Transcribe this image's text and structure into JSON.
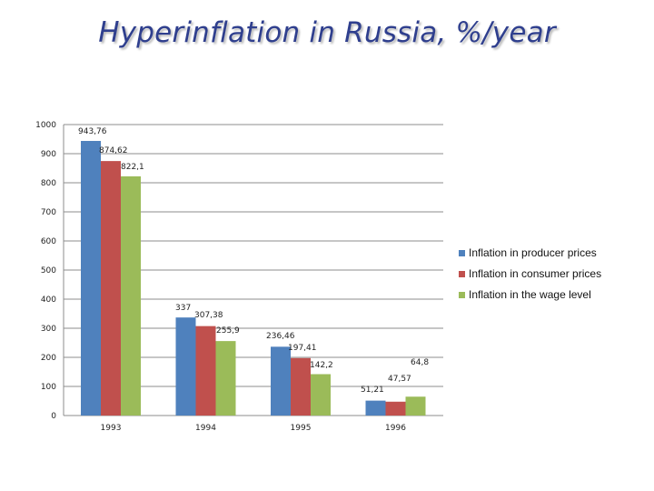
{
  "title": "Hyperinflation in Russia, %/year",
  "colors": {
    "producer": "#4f81bd",
    "consumer": "#c0504d",
    "wage": "#9bbb59",
    "grid": "#8c8c8c",
    "title": "#2f3f8e"
  },
  "chart_data": {
    "type": "bar",
    "title": "Hyperinflation in Russia, %/year",
    "xlabel": "",
    "ylabel": "",
    "categories": [
      "1993",
      "1994",
      "1995",
      "1996"
    ],
    "ylim": [
      0,
      1000
    ],
    "yticks": [
      0,
      100,
      200,
      300,
      400,
      500,
      600,
      700,
      800,
      900,
      1000
    ],
    "grid": true,
    "legend_position": "right",
    "series": [
      {
        "name": "Inflation in producer prices",
        "values": [
          943.76,
          337,
          236.46,
          51.21
        ],
        "labels": [
          "943,76",
          "337",
          "236,46",
          "51,21"
        ]
      },
      {
        "name": "Inflation in consumer prices",
        "values": [
          874.62,
          307.38,
          197.41,
          47.57
        ],
        "labels": [
          "874,62",
          "307,38",
          "197,41",
          "47,57"
        ]
      },
      {
        "name": "Inflation in the wage level",
        "values": [
          822.1,
          255.9,
          142.2,
          64.8
        ],
        "labels": [
          "822,1",
          "255,9",
          "142,2",
          "64,8"
        ]
      }
    ]
  }
}
